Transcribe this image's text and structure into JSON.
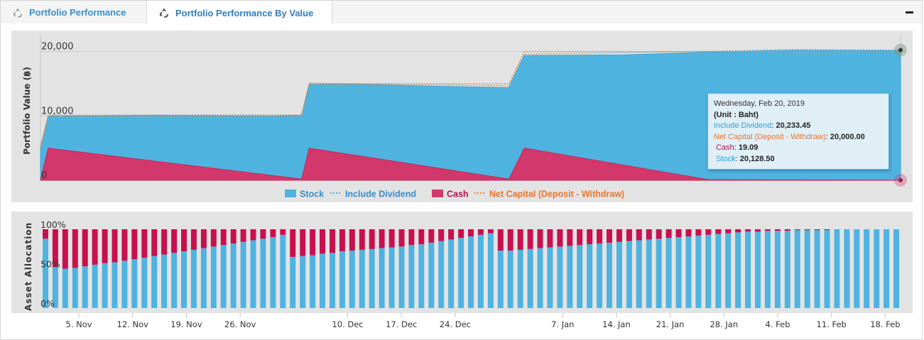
{
  "tabs": [
    {
      "label": "Portfolio Performance",
      "active": false
    },
    {
      "label": "Portfolio Performance By Value",
      "active": true
    }
  ],
  "icons": {
    "tab": "recycle-icon",
    "collapse": "minus-icon"
  },
  "colors": {
    "stock": "#4fb3e0",
    "cash": "#d2386b",
    "include_dividend": "#63bfe8",
    "net_capital": "#f08a2c",
    "plot_bg": "#e3e3e4",
    "panel_bg": "#ffffff"
  },
  "tooltip": {
    "date": "Wednesday, Feb 20, 2019",
    "unit": "(Unit : Baht)",
    "rows": [
      {
        "label": "Include Dividend",
        "value": "20,233.45"
      },
      {
        "label": "Net Capital (Deposit - Withdraw)",
        "value": "20,000.00"
      },
      {
        "label": "Cash",
        "value": "19.09"
      },
      {
        "label": "Stock",
        "value": "20,128.50"
      }
    ]
  },
  "chart_data": [
    {
      "type": "area",
      "ylabel": "Portfolio Value (฿)",
      "ylim": [
        0,
        22500
      ],
      "yticks": [
        "0",
        "10,000",
        "20,000"
      ],
      "ytick_values": [
        0,
        10000,
        20000
      ],
      "legend": [
        "Stock",
        "Include Dividend",
        "Cash",
        "Net Capital (Deposit - Withdraw)"
      ],
      "legend_position": "bottom-center",
      "x_start": "2018-10-31",
      "x_end": "2019-02-20",
      "xticks": [
        "5. Nov",
        "12. Nov",
        "19. Nov",
        "26. Nov",
        "10. Dec",
        "17. Dec",
        "24. Dec",
        "7. Jan",
        "14. Jan",
        "21. Jan",
        "28. Jan",
        "4. Feb",
        "11. Feb",
        "18. Feb"
      ],
      "xtick_dates": [
        "2018-11-05",
        "2018-11-12",
        "2018-11-19",
        "2018-11-26",
        "2018-12-10",
        "2018-12-17",
        "2018-12-24",
        "2019-01-07",
        "2019-01-14",
        "2019-01-21",
        "2019-01-28",
        "2019-02-04",
        "2019-02-11",
        "2019-02-18"
      ],
      "series": [
        {
          "name": "Stock",
          "points": [
            [
              "2018-10-31",
              5100
            ],
            [
              "2018-11-01",
              10000
            ],
            [
              "2018-11-15",
              10100
            ],
            [
              "2018-11-30",
              10000
            ],
            [
              "2018-12-04",
              10100
            ],
            [
              "2018-12-05",
              14900
            ],
            [
              "2018-12-12",
              14900
            ],
            [
              "2018-12-22",
              14600
            ],
            [
              "2018-12-31",
              14400
            ],
            [
              "2019-01-02",
              19400
            ],
            [
              "2019-01-15",
              19500
            ],
            [
              "2019-01-26",
              19900
            ],
            [
              "2019-02-06",
              20200
            ],
            [
              "2019-02-20",
              20130
            ]
          ]
        },
        {
          "name": "Include Dividend",
          "points": [
            [
              "2018-10-31",
              5200
            ],
            [
              "2018-11-01",
              10100
            ],
            [
              "2018-11-15",
              10150
            ],
            [
              "2018-12-04",
              10150
            ],
            [
              "2018-12-05",
              15100
            ],
            [
              "2018-12-22",
              14800
            ],
            [
              "2018-12-31",
              14700
            ],
            [
              "2019-01-02",
              19600
            ],
            [
              "2019-01-26",
              20050
            ],
            [
              "2019-02-06",
              20350
            ],
            [
              "2019-02-20",
              20233
            ]
          ]
        },
        {
          "name": "Cash",
          "points": [
            [
              "2018-10-31",
              0
            ],
            [
              "2018-11-01",
              5000
            ],
            [
              "2018-12-04",
              200
            ],
            [
              "2018-12-05",
              5000
            ],
            [
              "2018-12-31",
              200
            ],
            [
              "2019-01-02",
              5000
            ],
            [
              "2019-01-26",
              100
            ],
            [
              "2019-02-20",
              19
            ]
          ]
        },
        {
          "name": "Net Capital (Deposit - Withdraw)",
          "points": [
            [
              "2018-10-31",
              5000
            ],
            [
              "2018-11-01",
              10000
            ],
            [
              "2018-12-04",
              10000
            ],
            [
              "2018-12-05",
              15000
            ],
            [
              "2018-12-31",
              15000
            ],
            [
              "2019-01-02",
              20000
            ],
            [
              "2019-02-20",
              20000
            ]
          ]
        }
      ]
    },
    {
      "type": "bar",
      "stacked": true,
      "ylabel": "Asset Allocation",
      "ylim": [
        0,
        100
      ],
      "yticks": [
        "0%",
        "50%",
        "100%"
      ],
      "ytick_values": [
        0,
        50,
        100
      ],
      "series": [
        {
          "name": "Stock",
          "values": [
            88,
            52,
            50,
            51,
            53,
            55,
            57,
            58,
            60,
            62,
            64,
            66,
            68,
            70,
            72,
            74,
            76,
            78,
            80,
            82,
            84,
            86,
            88,
            90,
            93,
            65,
            66,
            67,
            69,
            70,
            72,
            73,
            74,
            75,
            76,
            77,
            78,
            80,
            81,
            83,
            85,
            87,
            89,
            91,
            93,
            95,
            73,
            73,
            74,
            75,
            76,
            77,
            78,
            79,
            80,
            81,
            82,
            83,
            84,
            85,
            86,
            87,
            88,
            89,
            90,
            91,
            92,
            93,
            94,
            95,
            96,
            97,
            97,
            98,
            98,
            98,
            99,
            99,
            99,
            99,
            100,
            100,
            100,
            100,
            100,
            100,
            100
          ]
        },
        {
          "name": "Cash",
          "values": [
            12,
            48,
            50,
            49,
            47,
            45,
            43,
            42,
            40,
            38,
            36,
            34,
            32,
            30,
            28,
            26,
            24,
            22,
            20,
            18,
            16,
            14,
            12,
            10,
            7,
            35,
            34,
            33,
            31,
            30,
            28,
            27,
            26,
            25,
            24,
            23,
            22,
            20,
            19,
            17,
            15,
            13,
            11,
            9,
            7,
            5,
            27,
            27,
            26,
            25,
            24,
            23,
            22,
            21,
            20,
            19,
            18,
            17,
            16,
            15,
            14,
            13,
            12,
            11,
            10,
            9,
            8,
            7,
            6,
            5,
            4,
            3,
            3,
            2,
            2,
            2,
            1,
            1,
            1,
            1,
            0,
            0,
            0,
            0,
            0,
            0,
            0
          ]
        }
      ]
    }
  ]
}
